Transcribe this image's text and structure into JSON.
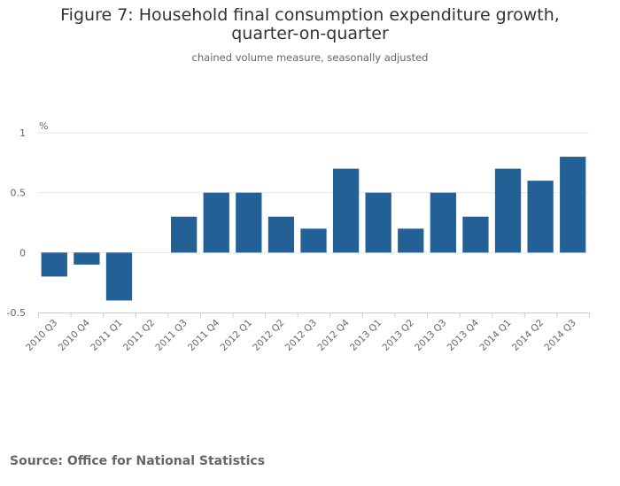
{
  "page": {
    "title": "Figure 7: Household final consumption expenditure growth, quarter-on-quarter",
    "subtitle": "chained volume measure, seasonally adjusted",
    "source": "Source: Office for National Statistics"
  },
  "colors": {
    "bar": "#236095",
    "grid": "#e6e6e6",
    "axis": "#cccccc",
    "tick_text": "#666666"
  },
  "chart_data": {
    "type": "bar",
    "title": "Figure 7: Household final consumption expenditure growth, quarter-on-quarter",
    "subtitle": "chained volume measure, seasonally adjusted",
    "xlabel": "",
    "ylabel": "%",
    "ylim": [
      -0.5,
      1
    ],
    "yticks": [
      -0.5,
      0,
      0.5,
      1
    ],
    "ytick_labels": [
      "-0.5",
      "0",
      "0.5",
      "1"
    ],
    "grid": true,
    "legend": "none",
    "categories": [
      "2010 Q3",
      "2010 Q4",
      "2011 Q1",
      "2011 Q2",
      "2011 Q3",
      "2011 Q4",
      "2012 Q1",
      "2012 Q2",
      "2012 Q3",
      "2012 Q4",
      "2013 Q1",
      "2013 Q2",
      "2013 Q3",
      "2013 Q4",
      "2014 Q1",
      "2014 Q2",
      "2014 Q3"
    ],
    "values": [
      -0.2,
      -0.1,
      -0.4,
      0,
      0.3,
      0.5,
      0.5,
      0.3,
      0.2,
      0.7,
      0.5,
      0.2,
      0.5,
      0.3,
      0.7,
      0.6,
      0.8
    ]
  }
}
